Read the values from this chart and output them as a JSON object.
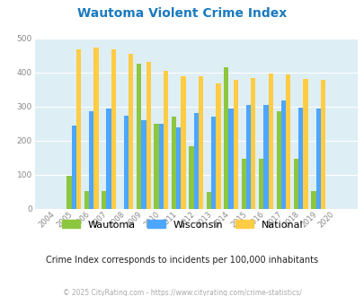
{
  "title": "Wautoma Violent Crime Index",
  "years": [
    2004,
    2005,
    2006,
    2007,
    2008,
    2009,
    2010,
    2011,
    2012,
    2013,
    2014,
    2015,
    2016,
    2017,
    2018,
    2019,
    2020
  ],
  "wautoma": [
    0,
    97,
    52,
    52,
    0,
    425,
    250,
    270,
    183,
    50,
    415,
    147,
    147,
    285,
    147,
    52,
    0
  ],
  "wisconsin": [
    0,
    244,
    285,
    293,
    272,
    260,
    249,
    240,
    281,
    270,
    293,
    305,
    306,
    317,
    298,
    294,
    0
  ],
  "national": [
    0,
    469,
    474,
    467,
    455,
    431,
    405,
    388,
    388,
    367,
    378,
    383,
    398,
    394,
    380,
    379,
    0
  ],
  "wautoma_color": "#8dc63f",
  "wisconsin_color": "#4da6ff",
  "national_color": "#ffcc44",
  "bg_color": "#deeef5",
  "title_color": "#1a7abf",
  "subtitle_color": "#222222",
  "footer_color": "#aaaaaa",
  "ylim": [
    0,
    500
  ],
  "yticks": [
    0,
    100,
    200,
    300,
    400,
    500
  ],
  "subtitle": "Crime Index corresponds to incidents per 100,000 inhabitants",
  "footer": "© 2025 CityRating.com - https://www.cityrating.com/crime-statistics/",
  "bar_width": 0.27,
  "legend_labels": [
    "Wautoma",
    "Wisconsin",
    "National"
  ]
}
